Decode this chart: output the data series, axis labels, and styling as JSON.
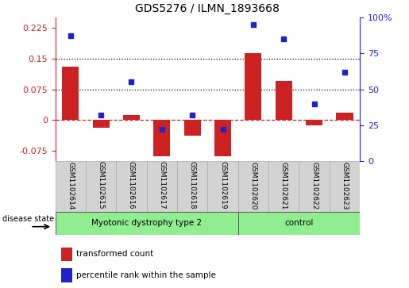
{
  "title": "GDS5276 / ILMN_1893668",
  "samples": [
    "GSM1102614",
    "GSM1102615",
    "GSM1102616",
    "GSM1102617",
    "GSM1102618",
    "GSM1102619",
    "GSM1102620",
    "GSM1102621",
    "GSM1102622",
    "GSM1102623"
  ],
  "red_values": [
    0.13,
    -0.018,
    0.012,
    -0.087,
    -0.038,
    -0.087,
    0.163,
    0.095,
    -0.012,
    0.018
  ],
  "blue_values": [
    87,
    32,
    55,
    22,
    32,
    22,
    95,
    85,
    40,
    62
  ],
  "groups": [
    {
      "label": "Myotonic dystrophy type 2",
      "start": 0,
      "end": 6
    },
    {
      "label": "control",
      "start": 6,
      "end": 10
    }
  ],
  "ylim_left": [
    -0.1,
    0.25
  ],
  "ylim_right": [
    0,
    100
  ],
  "yticks_left": [
    -0.075,
    0,
    0.075,
    0.15,
    0.225
  ],
  "yticks_right": [
    0,
    25,
    50,
    75,
    100
  ],
  "hlines": [
    0.075,
    0.15
  ],
  "bar_color": "#cc2222",
  "dot_color": "#2222cc",
  "zero_line_color": "#cc2222",
  "hline_color": "#000000",
  "group_colors": [
    "#90ee90",
    "#90ee90"
  ],
  "sample_box_color": "#d3d3d3",
  "legend_items": [
    "transformed count",
    "percentile rank within the sample"
  ],
  "bar_width": 0.55
}
